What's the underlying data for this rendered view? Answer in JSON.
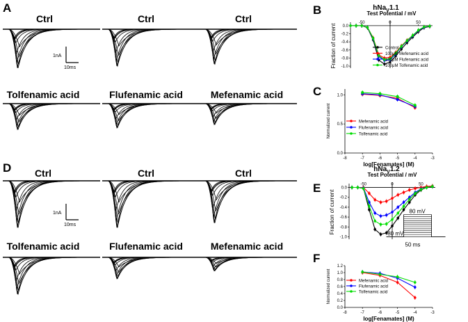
{
  "panel_labels": {
    "A": "A",
    "B": "B",
    "C": "C",
    "D": "D",
    "E": "E",
    "F": "F"
  },
  "traces": {
    "A": [
      {
        "title": "Ctrl",
        "kind": "ctrl",
        "scale": 1.0
      },
      {
        "title": "Ctrl",
        "kind": "ctrl",
        "scale": 0.95
      },
      {
        "title": "Ctrl",
        "kind": "ctrl",
        "scale": 0.9
      },
      {
        "title": "Tolfenamic acid",
        "kind": "drug",
        "scale": 0.8
      },
      {
        "title": "Flufenamic acid",
        "kind": "drug",
        "scale": 0.75
      },
      {
        "title": "Mefenamic acid",
        "kind": "drug",
        "scale": 0.65
      }
    ],
    "D": [
      {
        "title": "Ctrl",
        "kind": "ctrl",
        "scale": 1.0
      },
      {
        "title": "Ctrl",
        "kind": "ctrl",
        "scale": 1.0
      },
      {
        "title": "Ctrl",
        "kind": "ctrl",
        "scale": 0.9
      },
      {
        "title": "Tolfenamic acid",
        "kind": "drug",
        "scale": 0.95
      },
      {
        "title": "Flufenamic acid",
        "kind": "drug",
        "scale": 0.55
      },
      {
        "title": "Mefenamic acid",
        "kind": "drug",
        "scale": 0.35
      }
    ],
    "scalebar_current": "1nA",
    "scalebar_time": "10ms"
  },
  "chart_data": [
    {
      "panel": "B",
      "type": "line",
      "title_main": "hNa",
      "title_sub": "V",
      "title_end": "1.1",
      "xlabel": "Test Potential / mV",
      "ylabel": "Fraction of current",
      "xlim": [
        -70,
        75
      ],
      "ylim": [
        -1.05,
        0.05
      ],
      "xticks": [
        "-50",
        "0",
        "50"
      ],
      "xtick_values": [
        -50,
        0,
        50
      ],
      "yticks": [
        "0.0",
        "-0.2",
        "-0.4",
        "-0.6",
        "-0.8",
        "-1.0"
      ],
      "ytick_values": [
        0,
        -0.2,
        -0.4,
        -0.6,
        -0.8,
        -1.0
      ],
      "x": [
        -80,
        -70,
        -60,
        -50,
        -40,
        -30,
        -20,
        -10,
        0,
        10,
        20,
        30,
        40,
        50,
        60,
        70
      ],
      "series": [
        {
          "name": "Control",
          "color": "#000000",
          "values": [
            0,
            0,
            0,
            0,
            -0.05,
            -0.35,
            -0.85,
            -0.95,
            -0.9,
            -0.75,
            -0.58,
            -0.42,
            -0.28,
            -0.15,
            -0.05,
            -0.02
          ]
        },
        {
          "name": "100μM Mefenamic acid",
          "color": "#ff0000",
          "values": [
            0,
            0,
            0,
            0,
            -0.04,
            -0.3,
            -0.72,
            -0.8,
            -0.78,
            -0.66,
            -0.5,
            -0.36,
            -0.24,
            -0.12,
            -0.04,
            -0.01
          ]
        },
        {
          "name": "100μM Flufenamic acid",
          "color": "#0000ff",
          "values": [
            0,
            0,
            0,
            0,
            -0.04,
            -0.32,
            -0.76,
            -0.86,
            -0.84,
            -0.7,
            -0.52,
            -0.38,
            -0.25,
            -0.12,
            -0.04,
            -0.01
          ]
        },
        {
          "name": "100μM Tolfenamic acid",
          "color": "#00dd00",
          "values": [
            0,
            0,
            0,
            0,
            -0.04,
            -0.31,
            -0.74,
            -0.84,
            -0.82,
            -0.68,
            -0.51,
            -0.37,
            -0.24,
            -0.11,
            -0.03,
            -0.01
          ]
        }
      ]
    },
    {
      "panel": "C",
      "type": "line",
      "xlabel": "log[Fenamates] (M)",
      "ylabel": "Normalized current",
      "xlim": [
        -8,
        -3
      ],
      "ylim": [
        0,
        1.1
      ],
      "xticks": [
        "-8",
        "-7",
        "-6",
        "-5",
        "-4",
        "-3"
      ],
      "xtick_values": [
        -8,
        -7,
        -6,
        -5,
        -4,
        -3
      ],
      "yticks": [
        "0.0",
        "0.5",
        "1.0"
      ],
      "ytick_values": [
        0,
        0.5,
        1.0
      ],
      "x": [
        -7,
        -6,
        -5,
        -4
      ],
      "series": [
        {
          "name": "Mefenamic acid",
          "color": "#ff0000",
          "values": [
            1.01,
            0.99,
            0.94,
            0.78
          ]
        },
        {
          "name": "Flufenamic acid",
          "color": "#0000ff",
          "values": [
            1.02,
            1.0,
            0.92,
            0.8
          ]
        },
        {
          "name": "Tolfenamic acid",
          "color": "#00dd00",
          "values": [
            1.04,
            1.02,
            0.97,
            0.82
          ]
        }
      ]
    },
    {
      "panel": "E",
      "type": "line",
      "title_main": "hNa",
      "title_sub": "V",
      "title_end": "1.2",
      "xlabel": "Test Potential / mV",
      "ylabel": "Fraction of current",
      "xlim": [
        -75,
        75
      ],
      "ylim": [
        -1.05,
        0.05
      ],
      "xticks": [
        "-50",
        "0",
        "50"
      ],
      "xtick_values": [
        -50,
        0,
        50
      ],
      "yticks": [
        "0.0",
        "-0.2",
        "-0.4",
        "-0.6",
        "-0.8",
        "-1.0"
      ],
      "ytick_values": [
        0,
        -0.2,
        -0.4,
        -0.6,
        -0.8,
        -1.0
      ],
      "x": [
        -70,
        -60,
        -50,
        -40,
        -30,
        -20,
        -10,
        0,
        10,
        20,
        30,
        40,
        50,
        60,
        70
      ],
      "series": [
        {
          "name": "Control",
          "color": "#000000",
          "values": [
            0,
            0,
            -0.02,
            -0.45,
            -0.85,
            -0.95,
            -0.92,
            -0.78,
            -0.62,
            -0.45,
            -0.3,
            -0.15,
            -0.05,
            0,
            0.02
          ]
        },
        {
          "name": "Mefenamic acid",
          "color": "#ff0000",
          "values": [
            0,
            0,
            0,
            -0.12,
            -0.25,
            -0.3,
            -0.28,
            -0.22,
            -0.15,
            -0.1,
            -0.05,
            -0.02,
            0,
            0.02,
            0.03
          ]
        },
        {
          "name": "Flufenamic acid",
          "color": "#0000ff",
          "values": [
            0,
            0,
            -0.01,
            -0.3,
            -0.52,
            -0.58,
            -0.56,
            -0.5,
            -0.4,
            -0.3,
            -0.2,
            -0.1,
            -0.03,
            0,
            0.02
          ]
        },
        {
          "name": "Tolfenamic acid",
          "color": "#00dd00",
          "values": [
            0,
            0,
            -0.02,
            -0.38,
            -0.68,
            -0.75,
            -0.74,
            -0.65,
            -0.52,
            -0.38,
            -0.24,
            -0.12,
            -0.04,
            0,
            0.02
          ]
        }
      ],
      "protocol": {
        "top": "80 mV",
        "bottom": "-80 mV",
        "duration": "50 ms"
      }
    },
    {
      "panel": "F",
      "type": "line",
      "xlabel": "log[Fenamates] (M)",
      "ylabel": "Normalized current",
      "xlim": [
        -8,
        -3
      ],
      "ylim": [
        0,
        1.2
      ],
      "xticks": [
        "-8",
        "-7",
        "-6",
        "-5",
        "-4",
        "-3"
      ],
      "xtick_values": [
        -8,
        -7,
        -6,
        -5,
        -4,
        -3
      ],
      "yticks": [
        "0.0",
        "0.2",
        "0.4",
        "0.6",
        "0.8",
        "1.0",
        "1.2"
      ],
      "ytick_values": [
        0,
        0.2,
        0.4,
        0.6,
        0.8,
        1.0,
        1.2
      ],
      "x": [
        -7,
        -6,
        -5,
        -4
      ],
      "series": [
        {
          "name": "Mefenamic acid",
          "color": "#ff0000",
          "values": [
            1.0,
            0.92,
            0.72,
            0.28
          ]
        },
        {
          "name": "Flufenamic acid",
          "color": "#0000ff",
          "values": [
            1.02,
            0.98,
            0.84,
            0.58
          ]
        },
        {
          "name": "Tolfenamic acid",
          "color": "#00dd00",
          "values": [
            1.02,
            0.95,
            0.88,
            0.72
          ]
        }
      ]
    }
  ]
}
